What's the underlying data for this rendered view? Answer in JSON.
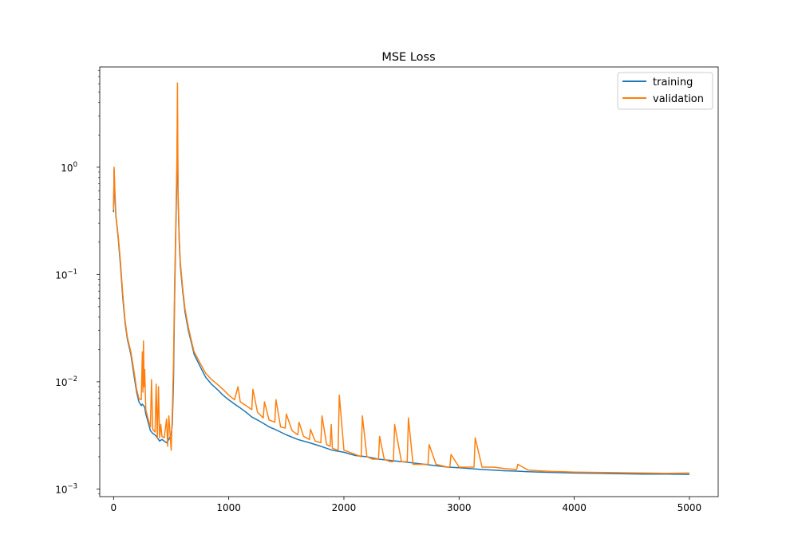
{
  "chart_data": {
    "type": "line",
    "title": "MSE Loss",
    "xlabel": "",
    "ylabel": "",
    "xlim": [
      -120,
      5250
    ],
    "ylim": [
      0.00085,
      8.6
    ],
    "yscale": "log",
    "x_ticks": [
      0,
      1000,
      2000,
      3000,
      4000,
      5000
    ],
    "x_tick_labels": [
      "0",
      "1000",
      "2000",
      "3000",
      "4000",
      "5000"
    ],
    "y_ticks": [
      0.001,
      0.01,
      0.1,
      1
    ],
    "y_tick_labels": [
      "10",
      "10",
      "10",
      "10"
    ],
    "y_tick_exponents": [
      "−3",
      "−2",
      "−1",
      "0"
    ],
    "grid": false,
    "legend_position": "top-right",
    "series": [
      {
        "name": "training",
        "color": "#1f77b4",
        "x": [
          0,
          5,
          10,
          20,
          40,
          60,
          80,
          100,
          120,
          150,
          180,
          200,
          220,
          240,
          250,
          260,
          270,
          280,
          300,
          320,
          340,
          360,
          380,
          400,
          420,
          440,
          460,
          480,
          500,
          510,
          520,
          530,
          540,
          550,
          555,
          560,
          570,
          580,
          600,
          620,
          650,
          680,
          700,
          750,
          800,
          850,
          900,
          950,
          1000,
          1050,
          1100,
          1150,
          1200,
          1250,
          1300,
          1350,
          1400,
          1450,
          1500,
          1600,
          1700,
          1800,
          1900,
          2000,
          2100,
          2200,
          2300,
          2400,
          2500,
          2600,
          2700,
          2800,
          2900,
          3000,
          3100,
          3200,
          3300,
          3400,
          3500,
          3600,
          3700,
          3800,
          3900,
          4000,
          4200,
          4400,
          4600,
          4800,
          5000
        ],
        "values": [
          0.38,
          0.95,
          0.6,
          0.35,
          0.22,
          0.12,
          0.06,
          0.035,
          0.025,
          0.018,
          0.011,
          0.008,
          0.0065,
          0.006,
          0.0062,
          0.006,
          0.0058,
          0.005,
          0.0042,
          0.0035,
          0.0033,
          0.0032,
          0.003,
          0.0028,
          0.0029,
          0.0028,
          0.0027,
          0.0029,
          0.0032,
          0.004,
          0.01,
          0.06,
          0.25,
          0.9,
          3.0,
          0.55,
          0.2,
          0.12,
          0.07,
          0.045,
          0.03,
          0.022,
          0.018,
          0.014,
          0.011,
          0.0095,
          0.0085,
          0.0075,
          0.0068,
          0.0062,
          0.0057,
          0.0052,
          0.0047,
          0.0044,
          0.0041,
          0.0038,
          0.0036,
          0.0034,
          0.0032,
          0.0029,
          0.0027,
          0.0025,
          0.0023,
          0.0022,
          0.00205,
          0.002,
          0.0019,
          0.00185,
          0.0018,
          0.00175,
          0.0017,
          0.00165,
          0.0016,
          0.00158,
          0.00155,
          0.00152,
          0.0015,
          0.00148,
          0.00147,
          0.00145,
          0.00144,
          0.00143,
          0.00142,
          0.00141,
          0.0014,
          0.00139,
          0.00138,
          0.00138,
          0.00137
        ]
      },
      {
        "name": "validation",
        "color": "#ff7f0e",
        "x": [
          0,
          5,
          10,
          20,
          40,
          60,
          80,
          100,
          120,
          150,
          180,
          200,
          220,
          240,
          250,
          255,
          260,
          265,
          270,
          280,
          300,
          320,
          330,
          340,
          360,
          370,
          380,
          390,
          400,
          410,
          420,
          440,
          460,
          470,
          480,
          500,
          510,
          520,
          530,
          540,
          550,
          555,
          560,
          570,
          580,
          600,
          620,
          650,
          680,
          700,
          750,
          800,
          850,
          900,
          950,
          1000,
          1050,
          1080,
          1100,
          1150,
          1200,
          1210,
          1250,
          1300,
          1310,
          1350,
          1400,
          1410,
          1450,
          1490,
          1500,
          1550,
          1600,
          1610,
          1650,
          1700,
          1710,
          1750,
          1800,
          1810,
          1850,
          1880,
          1890,
          1900,
          1950,
          1960,
          2000,
          2100,
          2150,
          2160,
          2200,
          2250,
          2300,
          2310,
          2350,
          2400,
          2430,
          2440,
          2500,
          2550,
          2560,
          2600,
          2700,
          2730,
          2740,
          2800,
          2900,
          2920,
          2930,
          3000,
          3100,
          3130,
          3140,
          3200,
          3300,
          3400,
          3500,
          3510,
          3600,
          3700,
          3800,
          3900,
          4000,
          4200,
          4400,
          4600,
          4800,
          5000
        ],
        "values": [
          0.4,
          1.0,
          0.65,
          0.36,
          0.23,
          0.13,
          0.065,
          0.037,
          0.026,
          0.019,
          0.012,
          0.0085,
          0.007,
          0.0068,
          0.019,
          0.008,
          0.024,
          0.009,
          0.013,
          0.0055,
          0.0045,
          0.0038,
          0.0105,
          0.0036,
          0.0034,
          0.0095,
          0.003,
          0.009,
          0.003,
          0.004,
          0.0031,
          0.003,
          0.0045,
          0.0025,
          0.0048,
          0.0023,
          0.005,
          0.015,
          0.08,
          0.3,
          1.2,
          6.1,
          0.6,
          0.22,
          0.13,
          0.075,
          0.048,
          0.032,
          0.023,
          0.019,
          0.015,
          0.012,
          0.0105,
          0.0095,
          0.0085,
          0.0075,
          0.0068,
          0.009,
          0.0065,
          0.006,
          0.0055,
          0.0085,
          0.0052,
          0.0046,
          0.0065,
          0.0044,
          0.0042,
          0.0068,
          0.0038,
          0.0037,
          0.005,
          0.0035,
          0.0032,
          0.0042,
          0.0031,
          0.0029,
          0.0036,
          0.0028,
          0.0027,
          0.0048,
          0.0026,
          0.0025,
          0.004,
          0.0024,
          0.0023,
          0.0075,
          0.0023,
          0.0021,
          0.002,
          0.0048,
          0.002,
          0.0019,
          0.0019,
          0.0031,
          0.0019,
          0.0018,
          0.0018,
          0.004,
          0.0018,
          0.0018,
          0.0046,
          0.0017,
          0.0017,
          0.0017,
          0.0026,
          0.0017,
          0.0016,
          0.0016,
          0.0021,
          0.0016,
          0.0016,
          0.0016,
          0.003,
          0.0016,
          0.0016,
          0.00155,
          0.00152,
          0.0017,
          0.0015,
          0.00148,
          0.00146,
          0.00145,
          0.00144,
          0.00143,
          0.00142,
          0.00141,
          0.0014,
          0.00141
        ]
      }
    ]
  }
}
